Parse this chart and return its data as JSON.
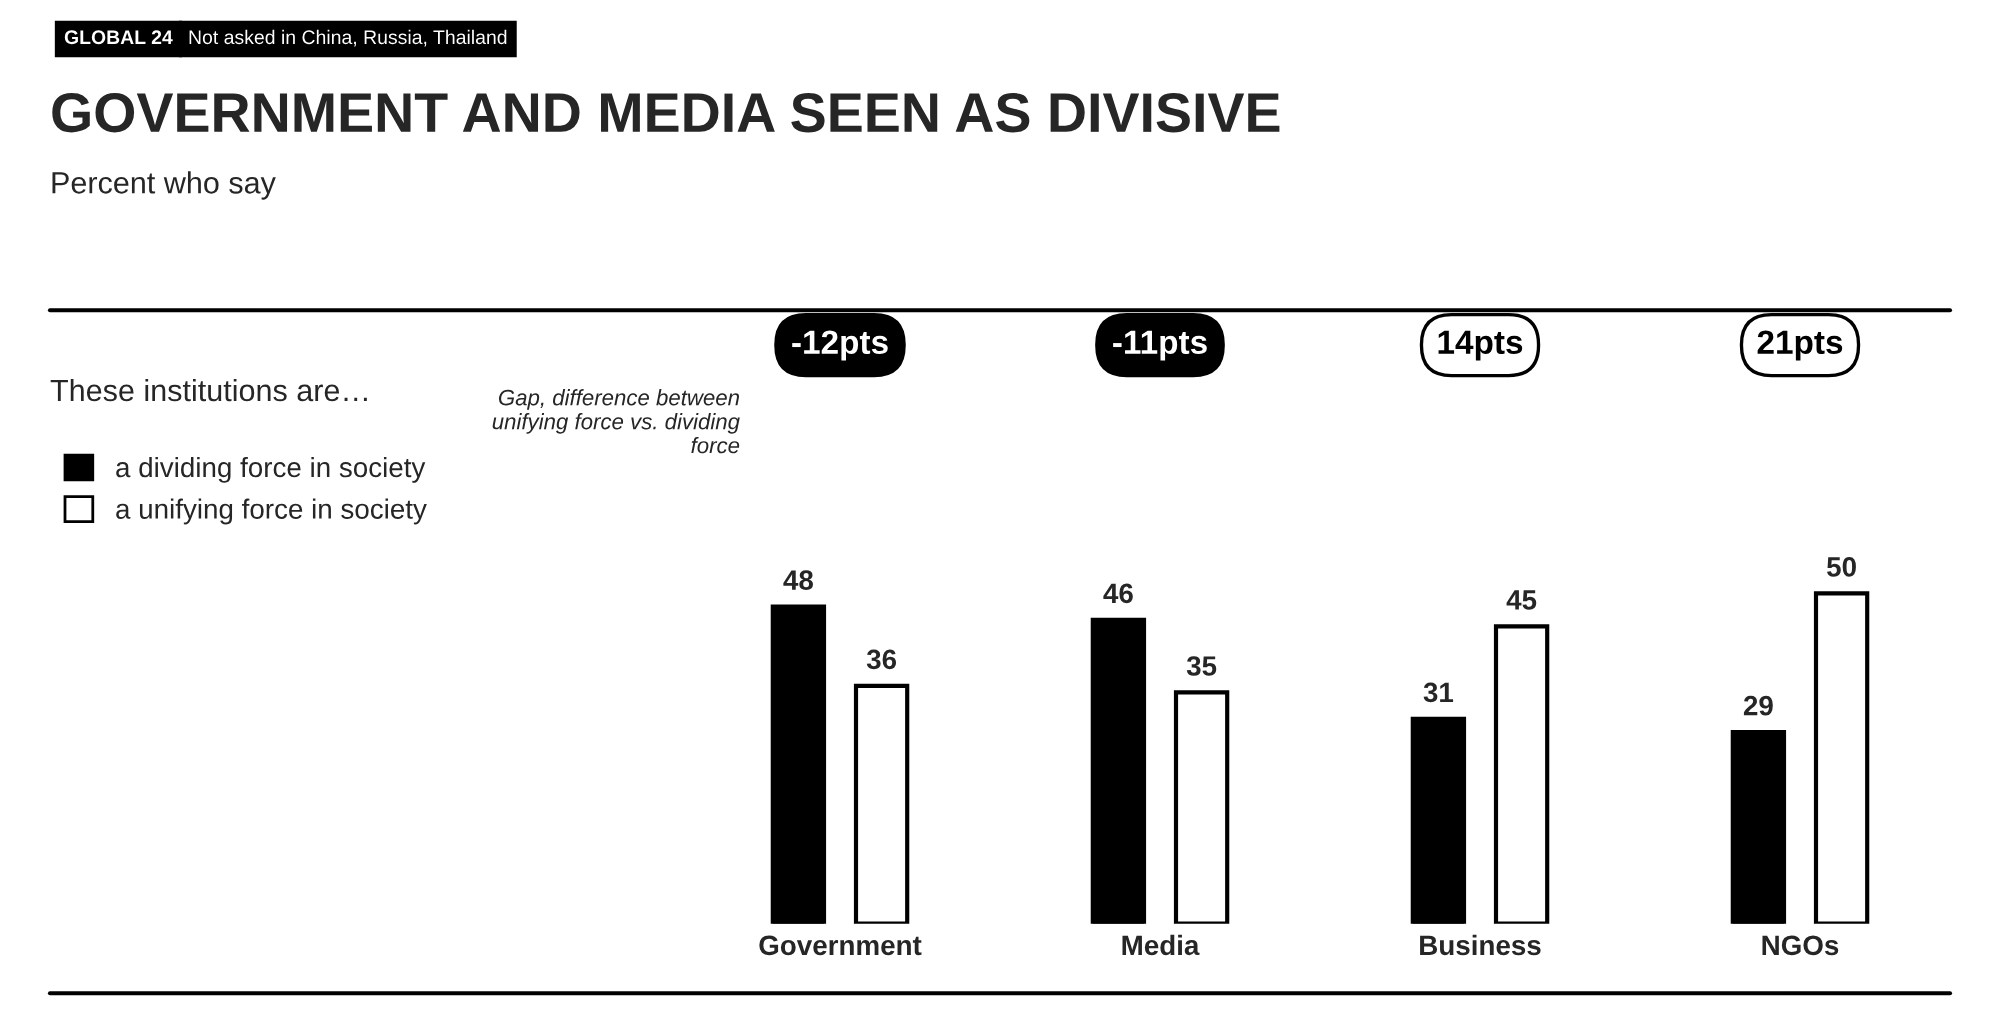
{
  "chart_data": {
    "type": "bar",
    "title": "GOVERNMENT AND MEDIA SEEN AS DIVISIVE",
    "subtitle": "Percent who say",
    "categories": [
      "Government",
      "Media",
      "Business",
      "NGOs"
    ],
    "series": [
      {
        "name": "a dividing force in society",
        "color": "#000000",
        "values": [
          48,
          46,
          31,
          29
        ]
      },
      {
        "name": "a unifying force in society",
        "color": "#ffffff",
        "values": [
          36,
          35,
          45,
          50
        ]
      }
    ],
    "data_labels": true,
    "legend": "top left",
    "grid": false,
    "annotations": [
      "GLOBAL 24",
      "Not asked in China, Russia, Thailand",
      "These institutions are…",
      "Gap, difference between unifying force vs. dividing force",
      "-12pts",
      "-11pts",
      "14pts",
      "21pts"
    ]
  }
}
